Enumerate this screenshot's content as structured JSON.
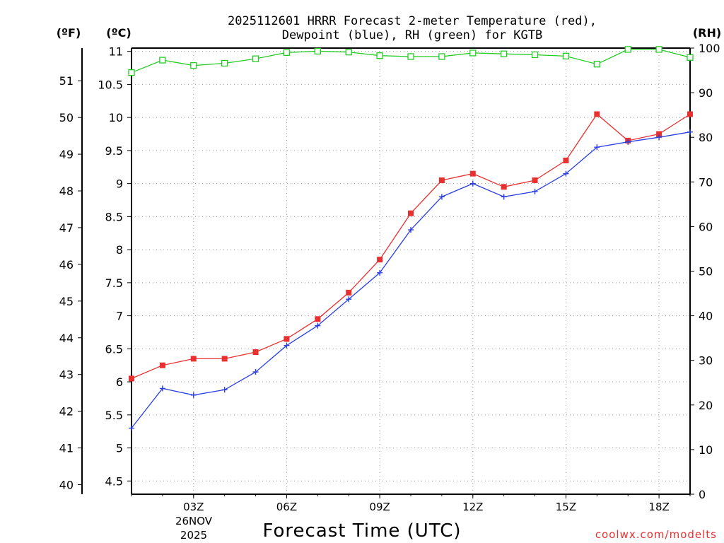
{
  "chart_data": {
    "type": "line",
    "title_line1": "2025112601 HRRR Forecast 2-meter Temperature (red),",
    "title_line2": "Dewpoint (blue), RH (green) for KGTB",
    "xlabel": "Forecast Time (UTC)",
    "watermark": "coolwx.com/modelts",
    "left_outer_unit": "(ºF)",
    "left_inner_unit": "(ºC)",
    "right_unit": "(RH)",
    "date_label": [
      "26NOV",
      "2025"
    ],
    "x_hours": [
      1,
      2,
      3,
      4,
      5,
      6,
      7,
      8,
      9,
      10,
      11,
      12,
      13,
      14,
      15,
      16,
      17,
      18,
      19
    ],
    "x_ticks": [
      {
        "hour": 3,
        "label": "03Z"
      },
      {
        "hour": 6,
        "label": "06Z"
      },
      {
        "hour": 9,
        "label": "09Z"
      },
      {
        "hour": 12,
        "label": "12Z"
      },
      {
        "hour": 15,
        "label": "15Z"
      },
      {
        "hour": 18,
        "label": "18Z"
      }
    ],
    "xlim": [
      1,
      19
    ],
    "celsius_axis": {
      "ylim": [
        4.3,
        11.05
      ],
      "ticks": [
        4.5,
        5,
        5.5,
        6,
        6.5,
        7,
        7.5,
        8,
        8.5,
        9,
        9.5,
        10,
        10.5,
        11
      ]
    },
    "fahrenheit_axis": {
      "ticks": [
        40,
        41,
        42,
        43,
        44,
        45,
        46,
        47,
        48,
        49,
        50,
        51
      ]
    },
    "rh_axis": {
      "ylim": [
        0,
        100
      ],
      "ticks": [
        0,
        10,
        20,
        30,
        40,
        50,
        60,
        70,
        80,
        90,
        100
      ]
    },
    "series": [
      {
        "name": "Temperature",
        "unit": "C",
        "color": "#e83030",
        "marker": "filled-square",
        "values": [
          6.05,
          6.25,
          6.35,
          6.35,
          6.45,
          6.65,
          6.95,
          7.35,
          7.85,
          8.55,
          9.05,
          9.15,
          8.95,
          9.05,
          9.35,
          10.05,
          9.65,
          9.75,
          10.05
        ]
      },
      {
        "name": "Dewpoint",
        "unit": "C",
        "color": "#2a3fe0",
        "marker": "plus",
        "values": [
          5.3,
          5.9,
          5.8,
          5.88,
          6.15,
          6.55,
          6.85,
          7.25,
          7.65,
          8.3,
          8.8,
          9.0,
          8.8,
          8.88,
          9.15,
          9.55,
          9.63,
          9.7,
          9.78
        ]
      },
      {
        "name": "RH",
        "unit": "%",
        "color": "#22cc22",
        "marker": "open-square",
        "values": [
          94.5,
          97.3,
          96.1,
          96.6,
          97.6,
          99.0,
          99.3,
          99.1,
          98.3,
          98.1,
          98.1,
          98.9,
          98.7,
          98.5,
          98.2,
          96.4,
          99.7,
          99.7,
          97.9
        ]
      }
    ]
  }
}
